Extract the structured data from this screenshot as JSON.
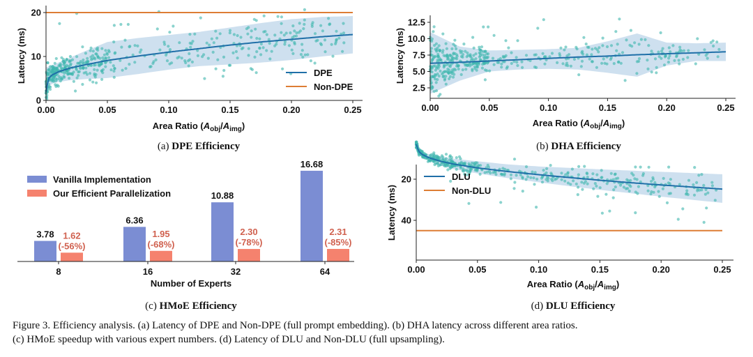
{
  "figure": {
    "caption_line1": "Figure 3. Efficiency analysis. (a) Latency of DPE and Non-DPE (full prompt embedding). (b) DHA latency across different area ratios.",
    "caption_line2": "(c) HMoE speedup with various expert numbers. (d) Latency of DLU and Non-DLU (full upsampling)."
  },
  "colors": {
    "scatter": "#3db5ad",
    "fit_line": "#1f6fa8",
    "band": "#c6dbec",
    "reference_line": "#dd7d34",
    "bar_vanilla": "#7b8dd3",
    "bar_efficient": "#f5826e",
    "efficient_label": "#d0614f"
  },
  "chart_data": [
    {
      "id": "a",
      "type": "scatter",
      "subtitle_prefix": "(a) ",
      "subtitle_bold": "DPE Efficiency",
      "xlabel_prefix": "Area Ratio (",
      "xlabel_A1": "A",
      "xlabel_sub1": "obj",
      "xlabel_mid": "/",
      "xlabel_A2": "A",
      "xlabel_sub2": "img",
      "xlabel_suffix": ")",
      "ylabel": "Latency (ms)",
      "xlim": [
        0,
        0.26
      ],
      "ylim": [
        0,
        21.5
      ],
      "xticks": [
        "0.00",
        "0.05",
        "0.10",
        "0.15",
        "0.20",
        "0.25"
      ],
      "yticks": [
        "0",
        "10",
        "20"
      ],
      "legend": {
        "position": "lower-right",
        "entries": [
          "DPE",
          "Non-DPE"
        ]
      },
      "reference": {
        "name": "Non-DPE",
        "y": 20,
        "x_range": [
          0,
          0.25
        ]
      },
      "fit": {
        "name": "DPE",
        "x": [
          0,
          0.002,
          0.005,
          0.01,
          0.02,
          0.03,
          0.05,
          0.075,
          0.1,
          0.125,
          0.15,
          0.175,
          0.2,
          0.225,
          0.25
        ],
        "y": [
          2.0,
          5.0,
          5.8,
          6.5,
          7.4,
          8.0,
          9.1,
          10.1,
          11.0,
          11.8,
          12.6,
          13.3,
          13.9,
          14.5,
          15.0
        ],
        "band_low": [
          1.5,
          3.2,
          3.8,
          4.2,
          4.6,
          4.8,
          5.1,
          6.0,
          7.0,
          7.8,
          8.2,
          8.6,
          9.2,
          10.0,
          10.7
        ],
        "band_high": [
          7.5,
          7.8,
          8.0,
          8.6,
          9.8,
          11.0,
          13.3,
          14.2,
          14.9,
          15.6,
          16.6,
          17.6,
          18.5,
          19.0,
          19.2
        ]
      },
      "scatter_summary": {
        "n": 480,
        "spread": 2.6,
        "outliers": [
          [
            0.025,
            19.8
          ],
          [
            0.092,
            20.2
          ],
          [
            0.189,
            19.1
          ],
          [
            0.192,
            19.0
          ],
          [
            0.011,
            17.5
          ],
          [
            0.061,
            17.3
          ],
          [
            0.067,
            17.3
          ],
          [
            0.126,
            18.8
          ]
        ]
      }
    },
    {
      "id": "b",
      "type": "scatter",
      "subtitle_prefix": "(b) ",
      "subtitle_bold": "DHA Efficiency",
      "xlabel_prefix": "Area Ratio (",
      "xlabel_A1": "A",
      "xlabel_sub1": "obj",
      "xlabel_mid": "/",
      "xlabel_A2": "A",
      "xlabel_sub2": "img",
      "xlabel_suffix": ")",
      "ylabel": "Latency (ms)",
      "xlim": [
        0,
        0.26
      ],
      "ylim": [
        0.8,
        13.5
      ],
      "xticks": [
        "0.00",
        "0.05",
        "0.10",
        "0.15",
        "0.20",
        "0.25"
      ],
      "yticks": [
        "2.5",
        "5.0",
        "7.5",
        "10.0",
        "12.5"
      ],
      "legend": null,
      "reference": null,
      "fit": {
        "name": "DHA",
        "x": [
          0,
          0.025,
          0.05,
          0.075,
          0.1,
          0.125,
          0.15,
          0.175,
          0.2,
          0.225,
          0.25
        ],
        "y": [
          6.25,
          6.4,
          6.6,
          6.8,
          7.0,
          7.2,
          7.35,
          7.55,
          7.7,
          7.85,
          8.0
        ],
        "band_low": [
          1.6,
          3.6,
          5.0,
          5.3,
          5.4,
          5.3,
          4.8,
          4.2,
          5.9,
          6.6,
          6.6
        ],
        "band_high": [
          11.0,
          8.8,
          8.2,
          8.3,
          8.4,
          8.6,
          9.6,
          10.8,
          9.4,
          9.3,
          9.4
        ]
      },
      "scatter_summary": {
        "n": 420,
        "spread": 0.9,
        "outliers": [
          [
            0.045,
            11.8
          ],
          [
            0.049,
            11.8
          ],
          [
            0.054,
            10.5
          ],
          [
            0.091,
            11.6
          ],
          [
            0.096,
            12.9
          ],
          [
            0.16,
            13.0
          ],
          [
            0.157,
            11.1
          ],
          [
            0.036,
            10.2
          ],
          [
            0.146,
            10.1
          ],
          [
            0.226,
            10.0
          ],
          [
            0.0,
            10.2
          ],
          [
            0.064,
            9.7
          ],
          [
            0.074,
            9.7
          ]
        ]
      }
    },
    {
      "id": "c",
      "type": "bar",
      "subtitle_prefix": "(c) ",
      "subtitle_bold": "HMoE Efficiency",
      "xlabel": "Number of Experts",
      "ylabel": "",
      "categories": [
        "8",
        "16",
        "32",
        "64"
      ],
      "legend": {
        "position": "top-left",
        "entries": [
          "Vanilla Implementation",
          "Our Efficient Parallelization"
        ]
      },
      "series": [
        {
          "name": "Vanilla Implementation",
          "values": [
            3.78,
            6.36,
            10.88,
            16.68
          ],
          "labels": [
            "3.78",
            "6.36",
            "10.88",
            "16.68"
          ]
        },
        {
          "name": "Our Efficient Parallelization",
          "values": [
            1.62,
            1.95,
            2.3,
            2.31
          ],
          "labels": [
            "1.62",
            "1.95",
            "2.30",
            "2.31"
          ],
          "reductions": [
            "(-56%)",
            "(-68%)",
            "(-78%)",
            "(-85%)"
          ]
        }
      ],
      "ylim": [
        0,
        17.5
      ]
    },
    {
      "id": "d",
      "type": "scatter",
      "subtitle_prefix": "(d) ",
      "subtitle_bold": "DLU Efficiency",
      "xlabel_prefix": "Area Ratio (",
      "xlabel_A1": "A",
      "xlabel_sub1": "obj",
      "xlabel_mid": "/",
      "xlabel_A2": "A",
      "xlabel_sub2": "img",
      "xlabel_suffix": ")",
      "ylabel": "Latency (ms)",
      "xlim": [
        0,
        0.26
      ],
      "ylim": [
        0,
        47
      ],
      "xticks": [
        "0.00",
        "0.05",
        "0.10",
        "0.15",
        "0.20",
        "0.25"
      ],
      "yticks": [
        "20",
        "40"
      ],
      "legend": {
        "position": "top-left",
        "entries": [
          "DLU",
          "Non-DLU"
        ]
      },
      "reference": {
        "name": "Non-DLU",
        "y": 45,
        "x_range": [
          0,
          0.25
        ]
      },
      "fit": {
        "name": "DLU",
        "x": [
          0,
          0.002,
          0.005,
          0.01,
          0.02,
          0.03,
          0.05,
          0.075,
          0.1,
          0.125,
          0.15,
          0.175,
          0.2,
          0.225,
          0.25
        ],
        "y": [
          3.0,
          6.5,
          8.0,
          9.5,
          11.3,
          12.6,
          14.5,
          16.3,
          17.8,
          19.2,
          20.5,
          21.7,
          22.8,
          23.8,
          24.8
        ],
        "band_low": [
          1.5,
          5.5,
          6.8,
          7.8,
          9.0,
          10.0,
          11.3,
          12.8,
          13.8,
          14.5,
          15.2,
          15.8,
          16.4,
          17.0,
          17.6
        ],
        "band_high": [
          5.0,
          8.0,
          9.5,
          11.0,
          13.4,
          15.0,
          17.2,
          19.5,
          21.5,
          23.4,
          25.2,
          26.8,
          28.5,
          30.0,
          31.5
        ]
      },
      "scatter_summary": {
        "n": 460,
        "spread": 3.2,
        "outliers": [
          [
            0.235,
            41
          ],
          [
            0.214,
            39.5
          ],
          [
            0.152,
            36.5
          ],
          [
            0.158,
            35.5
          ],
          [
            0.179,
            36.3
          ],
          [
            0.043,
            31.8
          ],
          [
            0.069,
            31.3
          ],
          [
            0.098,
            33.6
          ],
          [
            0.237,
            34
          ],
          [
            0.028,
            21
          ],
          [
            0.08,
            24.5
          ],
          [
            0.087,
            25.8
          ],
          [
            0.161,
            29
          ],
          [
            0.205,
            31.5
          ],
          [
            0.132,
            27.5
          ]
        ]
      }
    }
  ]
}
